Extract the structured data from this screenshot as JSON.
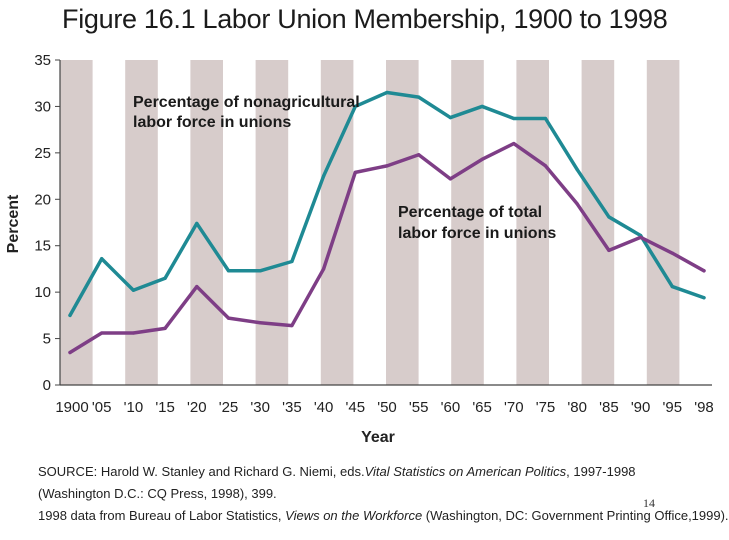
{
  "chart_data": {
    "type": "line",
    "title": "Figure 16.1  Labor Union Membership, 1900 to 1998",
    "xlabel": "Year",
    "ylabel": "Percent",
    "ylim": [
      0,
      35
    ],
    "yticks": [
      "0",
      "5",
      "10",
      "15",
      "20",
      "25",
      "30",
      "35"
    ],
    "x_ticks": [
      "1900",
      "'05",
      "'10",
      "'15",
      "'20",
      "'25",
      "'30",
      "'35",
      "'40",
      "'45",
      "'50",
      "'55",
      "'60",
      "'65",
      "'70",
      "'75",
      "'80",
      "'85",
      "'90",
      "'95",
      "'98"
    ],
    "x": [
      1900,
      1905,
      1910,
      1915,
      1920,
      1925,
      1930,
      1935,
      1940,
      1945,
      1950,
      1955,
      1960,
      1965,
      1970,
      1975,
      1980,
      1985,
      1990,
      1995,
      1998
    ],
    "series": [
      {
        "name": "Percentage of nonagricultural labor force in unions",
        "label_lines": [
          "Percentage of nonagricultural",
          "labor force in unions"
        ],
        "color": "#1f8a94",
        "values": [
          7.5,
          13.6,
          10.2,
          11.5,
          17.4,
          12.3,
          12.3,
          13.3,
          22.5,
          30.0,
          31.5,
          31.0,
          28.8,
          30.0,
          28.7,
          28.7,
          23.2,
          18.1,
          16.1,
          10.6,
          9.4
        ]
      },
      {
        "name": "Percentage of total labor force in unions",
        "label_lines": [
          "Percentage of total",
          "labor force in unions"
        ],
        "color": "#7e3e86",
        "values": [
          3.5,
          5.6,
          5.6,
          6.1,
          10.6,
          7.2,
          6.7,
          6.4,
          12.5,
          22.9,
          23.6,
          24.8,
          22.2,
          24.3,
          26.0,
          23.6,
          19.5,
          14.5,
          15.9,
          14.2,
          12.3
        ]
      }
    ]
  },
  "source": {
    "line1_prefix": "SOURCE:  Harold W. Stanley and Richard G. Niemi, eds.",
    "line1_italic": "Vital Statistics on American Politics",
    "line1_suffix": ", 1997-1998",
    "line2": "(Washington D.C.: CQ Press, 1998), 399.",
    "line3_prefix": "1998 data  from Bureau of Labor Statistics, ",
    "line3_italic": "Views on the Workforce",
    "line3_suffix": " (Washington, DC: Government Printing Office,1999)."
  },
  "page_number": "14",
  "colors": {
    "stripe": "#d7cccb",
    "plot_bg": "#ffffff",
    "axis": "#444444"
  }
}
